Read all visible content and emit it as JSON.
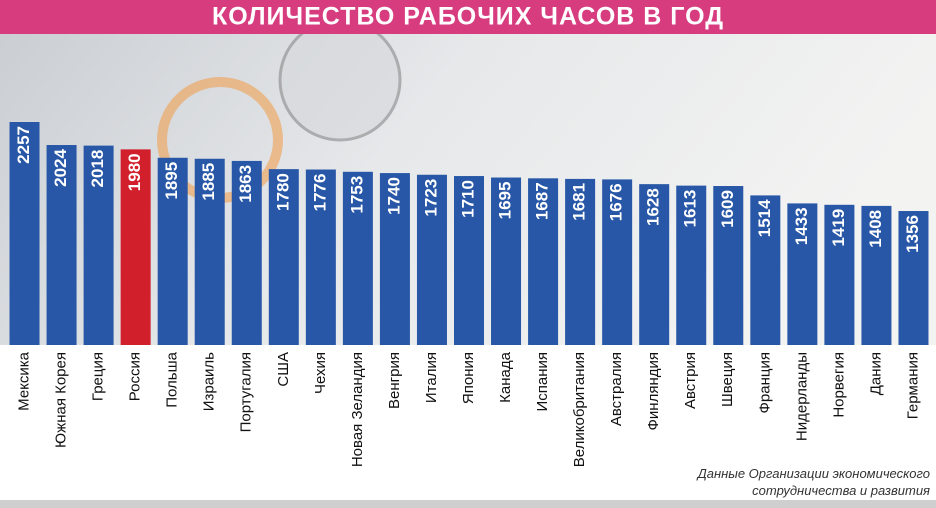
{
  "chart_data": {
    "type": "bar",
    "title": "КОЛИЧЕСТВО РАБОЧИХ ЧАСОВ В ГОД",
    "categories": [
      "Мексика",
      "Южная Корея",
      "Греция",
      "Россия",
      "Польша",
      "Израиль",
      "Португалия",
      "США",
      "Чехия",
      "Новая Зеландия",
      "Венгрия",
      "Италия",
      "Япония",
      "Канада",
      "Испания",
      "Великобритания",
      "Австралия",
      "Финляндия",
      "Австрия",
      "Швеция",
      "Франция",
      "Нидерланды",
      "Норвегия",
      "Дания",
      "Германия"
    ],
    "values": [
      2257,
      2024,
      2018,
      1980,
      1895,
      1885,
      1863,
      1780,
      1776,
      1753,
      1740,
      1723,
      1710,
      1695,
      1687,
      1681,
      1676,
      1628,
      1613,
      1609,
      1514,
      1433,
      1419,
      1408,
      1356
    ],
    "colors": [
      "#2757a6",
      "#2757a6",
      "#2757a6",
      "#d11f2c",
      "#2757a6",
      "#2757a6",
      "#2757a6",
      "#2757a6",
      "#2757a6",
      "#2757a6",
      "#2757a6",
      "#2757a6",
      "#2757a6",
      "#2757a6",
      "#2757a6",
      "#2757a6",
      "#2757a6",
      "#2757a6",
      "#2757a6",
      "#2757a6",
      "#2757a6",
      "#2757a6",
      "#2757a6",
      "#2757a6",
      "#2757a6"
    ],
    "source": [
      "Данные Организации экономического",
      "сотрудничества и развития"
    ]
  }
}
